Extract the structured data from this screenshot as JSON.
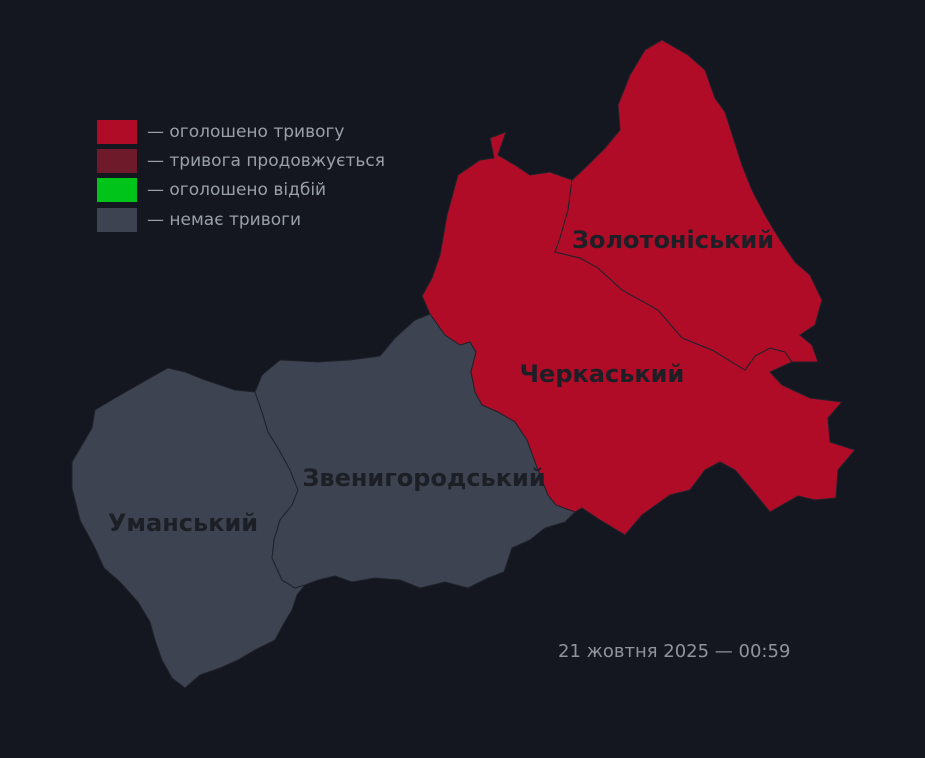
{
  "colors": {
    "background": "#14171f",
    "alert": "#b00c27",
    "alert_continues": "#6e1a2a",
    "all_clear": "#00c41a",
    "no_alert": "#3d4350",
    "border": "#1f222b"
  },
  "legend": [
    {
      "label": "— оголошено тривогу",
      "color": "#b00c27",
      "status": "alert"
    },
    {
      "label": "— тривога продовжується",
      "color": "#6e1a2a",
      "status": "alert_continues"
    },
    {
      "label": "— оголошено відбій",
      "color": "#00c41a",
      "status": "all_clear"
    },
    {
      "label": "— немає тривоги",
      "color": "#3d4350",
      "status": "no_alert"
    }
  ],
  "districts": {
    "zolotonisky": {
      "name": "Золотоніський",
      "status": "alert"
    },
    "cherkasky": {
      "name": "Черкаський",
      "status": "alert"
    },
    "zvenyhorodsky": {
      "name": "Звенигородський",
      "status": "no_alert"
    },
    "umansky": {
      "name": "Уманський",
      "status": "no_alert"
    }
  },
  "timestamp": "21 жовтня 2025 — 00:59"
}
